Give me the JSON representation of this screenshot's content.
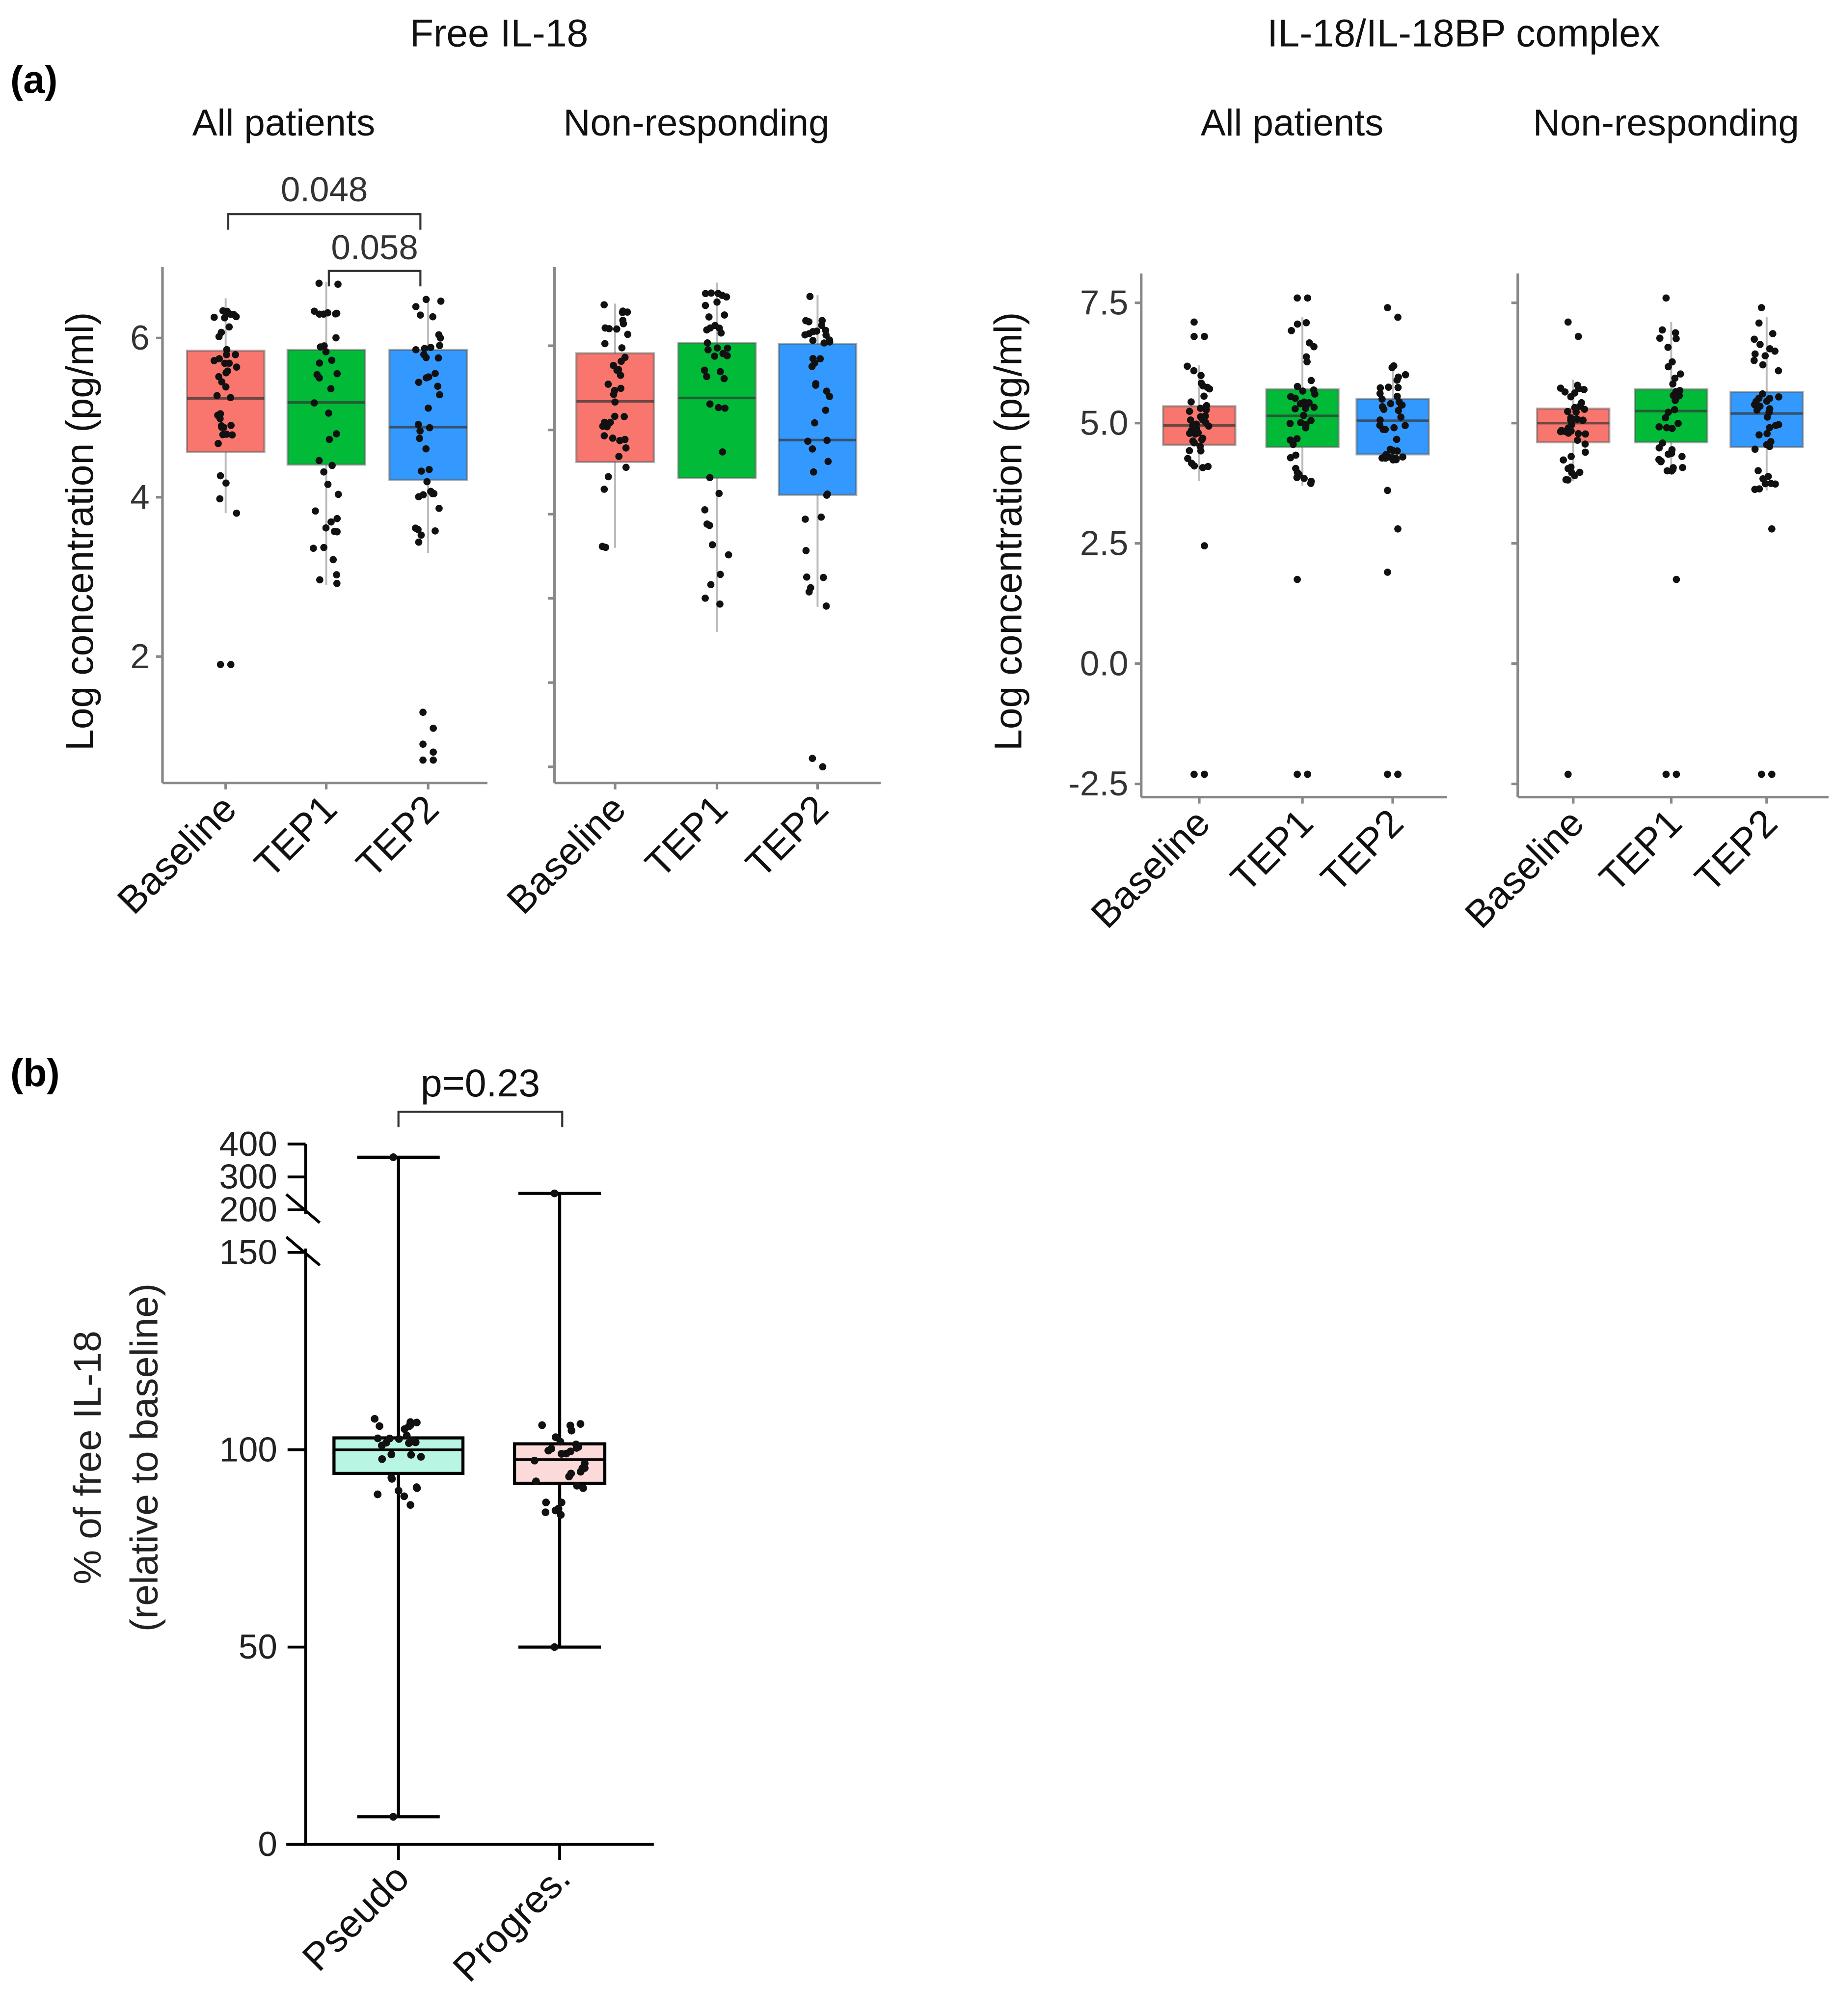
{
  "figure": {
    "label_a": "(a)",
    "label_b": "(b)",
    "title_free": "Free IL-18",
    "title_complex": "IL-18/IL-18BP  complex"
  },
  "colors": {
    "Baseline": "#F8766D",
    "TEP1": "#00BA38",
    "TEP2": "#3399FF",
    "Pseudo": "#B8F5E2",
    "Progres.": "#FCDADA"
  },
  "chart_data": [
    {
      "type": "box",
      "id": "a1",
      "title": "All patients",
      "group_title": "Free IL-18",
      "ylabel": "Log concentration (pg/ml)",
      "yticks": [
        2,
        4,
        6
      ],
      "ytick_labels": [
        "2",
        "4",
        "6"
      ],
      "ylim": [
        0.4,
        6.9
      ],
      "categories": [
        "Baseline",
        "TEP1",
        "TEP2"
      ],
      "boxes": [
        {
          "q1": 4.57,
          "median": 5.24,
          "q3": 5.84,
          "low": 3.8,
          "high": 6.5,
          "outliers": [
            1.9,
            1.9
          ]
        },
        {
          "q1": 4.41,
          "median": 5.19,
          "q3": 5.85,
          "low": 2.9,
          "high": 6.7,
          "outliers": []
        },
        {
          "q1": 4.22,
          "median": 4.88,
          "q3": 5.85,
          "low": 3.3,
          "high": 6.5,
          "outliers": [
            1.3,
            1.1,
            0.9,
            0.8,
            0.7,
            0.7
          ]
        }
      ],
      "comparisons": [
        {
          "from": "Baseline",
          "to": "TEP2",
          "label": "0.048"
        },
        {
          "from": "TEP1",
          "to": "TEP2",
          "label": "0.058"
        }
      ]
    },
    {
      "type": "box",
      "id": "a2",
      "title": "Non-responding",
      "group_title": "Free IL-18",
      "yticks": [
        1,
        2,
        3,
        4,
        5,
        6
      ],
      "ytick_labels": [],
      "ylim": [
        0.8,
        6.95
      ],
      "categories": [
        "Baseline",
        "TEP1",
        "TEP2"
      ],
      "boxes": [
        {
          "q1": 4.62,
          "median": 5.34,
          "q3": 5.91,
          "low": 3.6,
          "high": 6.5,
          "outliers": []
        },
        {
          "q1": 4.43,
          "median": 5.38,
          "q3": 6.03,
          "low": 2.6,
          "high": 6.75,
          "outliers": []
        },
        {
          "q1": 4.23,
          "median": 4.88,
          "q3": 6.02,
          "low": 2.9,
          "high": 6.6,
          "outliers": [
            1.1,
            1.0
          ]
        }
      ],
      "comparisons": []
    },
    {
      "type": "box",
      "id": "a3",
      "title": "All patients",
      "group_title": "IL-18/IL-18BP  complex",
      "ylabel": "Log concentration (pg/ml)",
      "yticks": [
        -2.5,
        0,
        2.5,
        5,
        7.5
      ],
      "ytick_labels": [
        "-2.5",
        "0.0",
        "2.5",
        "5.0",
        "7.5"
      ],
      "ylim": [
        -2.75,
        8.2
      ],
      "categories": [
        "Baseline",
        "TEP1",
        "TEP2"
      ],
      "boxes": [
        {
          "q1": 4.55,
          "median": 4.95,
          "q3": 5.35,
          "low": 3.8,
          "high": 6.2,
          "outliers": [
            7.1,
            6.8,
            6.8,
            2.45,
            -2.3,
            -2.3
          ]
        },
        {
          "q1": 4.5,
          "median": 5.15,
          "q3": 5.7,
          "low": 3.7,
          "high": 7.2,
          "outliers": [
            7.6,
            7.6,
            1.75,
            -2.3,
            -2.3,
            -2.3
          ]
        },
        {
          "q1": 4.35,
          "median": 5.05,
          "q3": 5.5,
          "low": 4.2,
          "high": 6.2,
          "outliers": [
            7.4,
            7.2,
            3.6,
            2.8,
            1.9,
            -2.3,
            -2.3,
            -2.3
          ]
        }
      ],
      "comparisons": []
    },
    {
      "type": "box",
      "id": "a4",
      "title": "Non-responding",
      "group_title": "IL-18/IL-18BP  complex",
      "yticks": [
        -2.5,
        0,
        2.5,
        5,
        7.5
      ],
      "ytick_labels": [],
      "ylim": [
        -2.75,
        8.2
      ],
      "categories": [
        "Baseline",
        "TEP1",
        "TEP2"
      ],
      "boxes": [
        {
          "q1": 4.6,
          "median": 5.0,
          "q3": 5.3,
          "low": 3.8,
          "high": 5.9,
          "outliers": [
            7.1,
            6.8,
            -2.3
          ]
        },
        {
          "q1": 4.6,
          "median": 5.25,
          "q3": 5.7,
          "low": 4.0,
          "high": 7.1,
          "outliers": [
            7.6,
            1.75,
            -2.3,
            -2.3
          ]
        },
        {
          "q1": 4.5,
          "median": 5.2,
          "q3": 5.65,
          "low": 3.6,
          "high": 7.2,
          "outliers": [
            7.4,
            2.8,
            -2.3,
            -2.3
          ]
        }
      ],
      "comparisons": []
    },
    {
      "type": "box",
      "id": "b",
      "ylabel": "% of free IL-18",
      "ylabel2": "(relative to baseline)",
      "yticks": [
        0,
        50,
        100,
        150,
        200,
        300,
        400
      ],
      "ytick_labels": [
        "0",
        "50",
        "100",
        "150",
        "200",
        "300",
        "400"
      ],
      "axis_break": [
        150,
        200
      ],
      "ylim": [
        0,
        400
      ],
      "categories": [
        "Pseudo",
        "Progres."
      ],
      "boxes": [
        {
          "q1": 94,
          "median": 100,
          "q3": 103,
          "low": 7,
          "high": 360,
          "outliers": []
        },
        {
          "q1": 91.5,
          "median": 97.5,
          "q3": 101.5,
          "low": 50,
          "high": 250,
          "outliers": []
        }
      ],
      "comparisons": [
        {
          "from": "Pseudo",
          "to": "Progres.",
          "label": "p=0.23"
        }
      ]
    }
  ]
}
